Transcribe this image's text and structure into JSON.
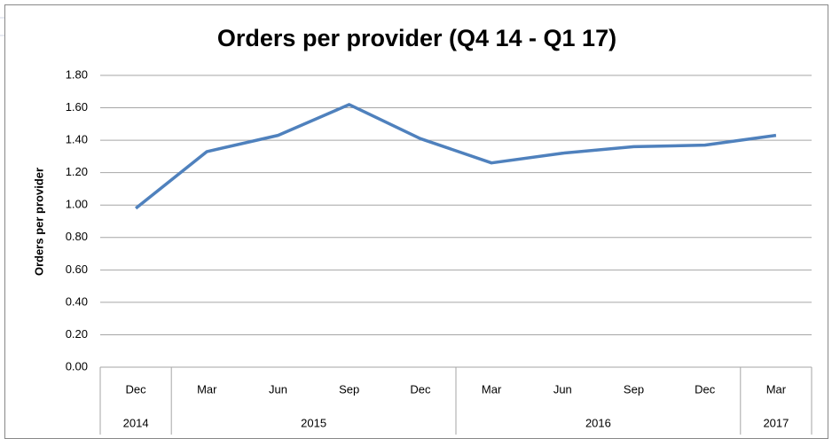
{
  "chart_data": {
    "type": "line",
    "title": "Orders per provider (Q4 14 - Q1 17)",
    "y_label": "Orders per provider",
    "categories": [
      "Dec",
      "Mar",
      "Jun",
      "Sep",
      "Dec",
      "Mar",
      "Jun",
      "Sep",
      "Dec",
      "Mar"
    ],
    "category_groups": [
      {
        "label": "2014",
        "size": 1
      },
      {
        "label": "2015",
        "size": 4
      },
      {
        "label": "2016",
        "size": 4
      },
      {
        "label": "2017",
        "size": 1
      }
    ],
    "series": [
      {
        "name": "Orders per provider",
        "color": "#4f81bd",
        "values": [
          0.98,
          1.33,
          1.43,
          1.62,
          1.41,
          1.26,
          1.32,
          1.36,
          1.37,
          1.43
        ]
      }
    ],
    "ylim": [
      0,
      1.8
    ],
    "yticks": [
      {
        "value": 0,
        "label": "0.00"
      },
      {
        "value": 0.2,
        "label": "0.20"
      },
      {
        "value": 0.4,
        "label": "0.40"
      },
      {
        "value": 0.6,
        "label": "0.60"
      },
      {
        "value": 0.8,
        "label": "0.80"
      },
      {
        "value": 1,
        "label": "1.00"
      },
      {
        "value": 1.2,
        "label": "1.20"
      },
      {
        "value": 1.4,
        "label": "1.40"
      },
      {
        "value": 1.6,
        "label": "1.60"
      },
      {
        "value": 1.8,
        "label": "1.80"
      }
    ],
    "grid": true
  }
}
